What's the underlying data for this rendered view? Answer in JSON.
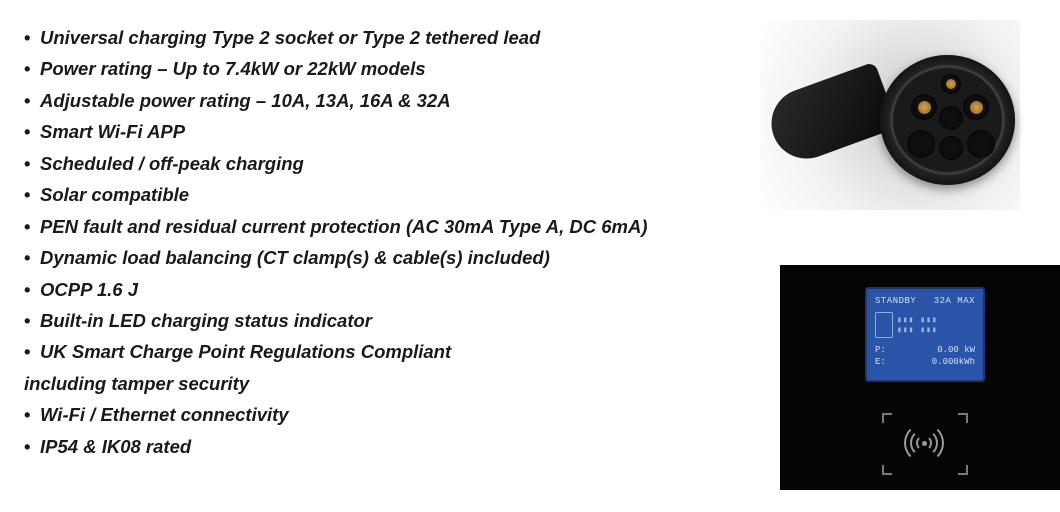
{
  "features": [
    "Universal charging Type 2 socket or Type 2 tethered lead",
    "Power rating – Up to 7.4kW or 22kW models",
    "Adjustable power rating – 10A, 13A, 16A & 32A",
    "Smart Wi-Fi APP",
    "Scheduled / off-peak charging",
    "Solar compatible",
    "PEN fault and residual current protection (AC 30mA Type A, DC 6mA)",
    "Dynamic load balancing (CT clamp(s) & cable(s) included)",
    "OCPP 1.6 J",
    "Built-in LED charging status indicator",
    "UK Smart Charge Point Regulations Compliant",
    "including tamper security",
    "Wi-Fi / Ethernet connectivity",
    "IP54 & IK08 rated"
  ],
  "feature_no_bullet_indices": [
    11
  ],
  "text_color": "#1a1a1a",
  "screen": {
    "status": "STANDBY",
    "max": "32A MAX",
    "power": "0.00 kW",
    "energy": "0.000kWh"
  },
  "screen_bg": "#2a54a8"
}
